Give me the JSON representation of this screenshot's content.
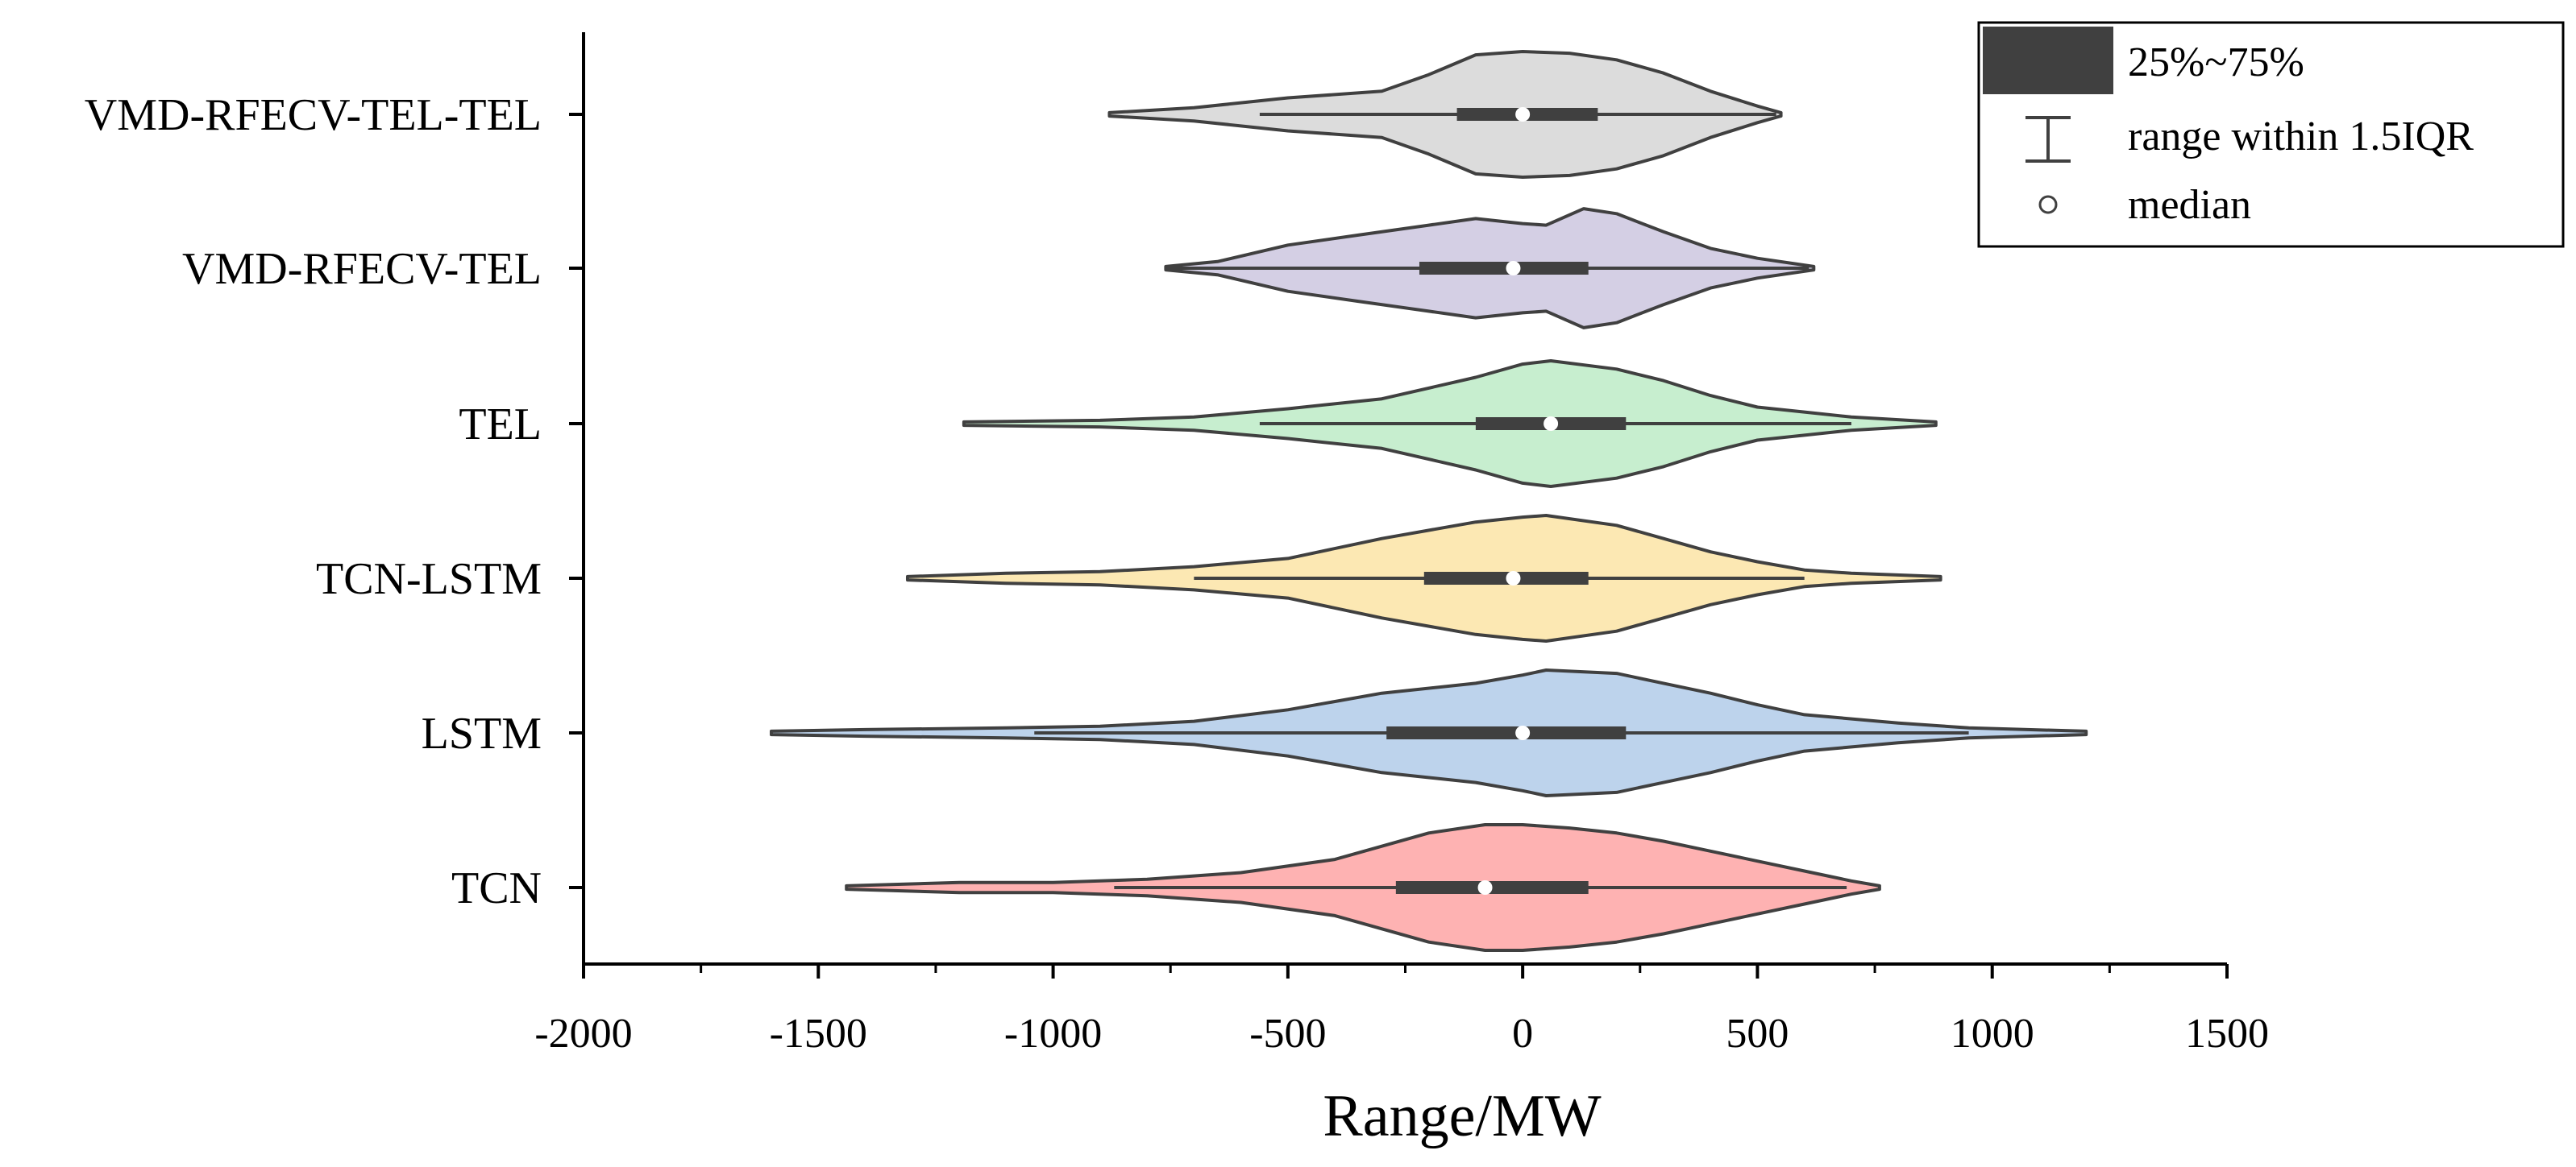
{
  "chart_data": {
    "type": "violin",
    "orientation": "horizontal",
    "title": "",
    "xlabel": "Range/MW",
    "ylabel": "",
    "xlim": [
      -2000,
      1500
    ],
    "xticks": [
      -2000,
      -1500,
      -1000,
      -500,
      0,
      500,
      1000,
      1500
    ],
    "xtick_labels": [
      "-2000",
      "-1500",
      "-1000",
      "-500",
      "0",
      "500",
      "1000",
      "1500"
    ],
    "grid": false,
    "legend_position": "top-right",
    "legend": [
      {
        "key": "box",
        "label": "25%~75%"
      },
      {
        "key": "whisker",
        "label": "range within 1.5IQR"
      },
      {
        "key": "median",
        "label": "median"
      }
    ],
    "colors": {
      "outline": "#404040",
      "box": "#404040",
      "median": "#ffffff"
    },
    "series": [
      {
        "name": "VMD-RFECV-TEL-TEL",
        "fill": "#dcdcdc",
        "min": -880,
        "max": 550,
        "whisker": [
          -560,
          540
        ],
        "q1": -140,
        "median": 0,
        "q3": 160,
        "profile": [
          [
            -880,
            1
          ],
          [
            -700,
            4
          ],
          [
            -500,
            10
          ],
          [
            -300,
            14
          ],
          [
            -200,
            24
          ],
          [
            -100,
            36
          ],
          [
            0,
            38
          ],
          [
            100,
            37
          ],
          [
            200,
            33
          ],
          [
            300,
            25
          ],
          [
            400,
            14
          ],
          [
            500,
            5
          ],
          [
            550,
            1
          ]
        ]
      },
      {
        "name": "VMD-RFECV-TEL",
        "fill": "#d4cfe4",
        "min": -760,
        "max": 620,
        "whisker": [
          -760,
          610
        ],
        "q1": -220,
        "median": -20,
        "q3": 140,
        "profile": [
          [
            -760,
            1
          ],
          [
            -650,
            4
          ],
          [
            -500,
            14
          ],
          [
            -350,
            20
          ],
          [
            -200,
            26
          ],
          [
            -100,
            30
          ],
          [
            0,
            27
          ],
          [
            50,
            26
          ],
          [
            130,
            36
          ],
          [
            200,
            33
          ],
          [
            300,
            22
          ],
          [
            400,
            12
          ],
          [
            500,
            6
          ],
          [
            620,
            1
          ]
        ]
      },
      {
        "name": "TEL",
        "fill": "#c7eecf",
        "min": -1190,
        "max": 880,
        "whisker": [
          -560,
          700
        ],
        "q1": -100,
        "median": 60,
        "q3": 220,
        "profile": [
          [
            -1190,
            1
          ],
          [
            -900,
            2
          ],
          [
            -700,
            4
          ],
          [
            -500,
            9
          ],
          [
            -300,
            15
          ],
          [
            -100,
            28
          ],
          [
            0,
            36
          ],
          [
            60,
            38
          ],
          [
            200,
            33
          ],
          [
            300,
            26
          ],
          [
            400,
            17
          ],
          [
            500,
            10
          ],
          [
            600,
            7
          ],
          [
            700,
            4
          ],
          [
            880,
            1
          ]
        ]
      },
      {
        "name": "TCN-LSTM",
        "fill": "#fce8b3",
        "min": -1310,
        "max": 890,
        "whisker": [
          -700,
          600
        ],
        "q1": -210,
        "median": -20,
        "q3": 140,
        "profile": [
          [
            -1310,
            1
          ],
          [
            -1100,
            3
          ],
          [
            -900,
            4
          ],
          [
            -700,
            7
          ],
          [
            -500,
            12
          ],
          [
            -300,
            24
          ],
          [
            -100,
            34
          ],
          [
            0,
            37
          ],
          [
            50,
            38
          ],
          [
            200,
            32
          ],
          [
            300,
            24
          ],
          [
            400,
            16
          ],
          [
            500,
            10
          ],
          [
            600,
            5
          ],
          [
            700,
            3
          ],
          [
            890,
            1
          ]
        ]
      },
      {
        "name": "LSTM",
        "fill": "#bdd3ec",
        "min": -1600,
        "max": 1200,
        "whisker": [
          -1040,
          950
        ],
        "q1": -290,
        "median": 0,
        "q3": 220,
        "profile": [
          [
            -1600,
            1
          ],
          [
            -1400,
            2
          ],
          [
            -1100,
            3
          ],
          [
            -900,
            4
          ],
          [
            -700,
            7
          ],
          [
            -500,
            14
          ],
          [
            -300,
            24
          ],
          [
            -100,
            30
          ],
          [
            0,
            35
          ],
          [
            50,
            38
          ],
          [
            200,
            36
          ],
          [
            300,
            30
          ],
          [
            400,
            24
          ],
          [
            500,
            17
          ],
          [
            600,
            11
          ],
          [
            800,
            6
          ],
          [
            950,
            3
          ],
          [
            1200,
            1
          ]
        ]
      },
      {
        "name": "TCN",
        "fill": "#feb2b2",
        "min": -1440,
        "max": 760,
        "whisker": [
          -870,
          690
        ],
        "q1": -270,
        "median": -80,
        "q3": 140,
        "profile": [
          [
            -1440,
            1
          ],
          [
            -1200,
            3
          ],
          [
            -1000,
            3
          ],
          [
            -800,
            5
          ],
          [
            -600,
            9
          ],
          [
            -400,
            17
          ],
          [
            -300,
            25
          ],
          [
            -200,
            33
          ],
          [
            -80,
            38
          ],
          [
            0,
            38
          ],
          [
            100,
            36
          ],
          [
            200,
            33
          ],
          [
            300,
            28
          ],
          [
            400,
            22
          ],
          [
            500,
            16
          ],
          [
            600,
            10
          ],
          [
            700,
            4
          ],
          [
            760,
            1
          ]
        ]
      }
    ]
  }
}
